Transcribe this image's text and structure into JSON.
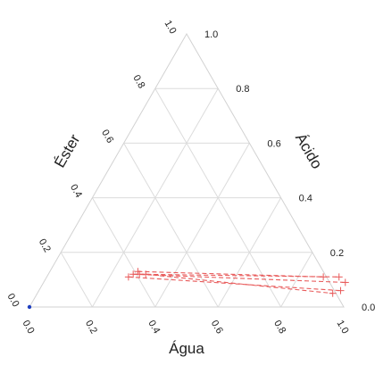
{
  "chart_data": {
    "type": "ternary",
    "axis_labels": {
      "bottom": "Água",
      "right": "Ácido",
      "left": "Éster"
    },
    "bottom_ticks": [
      "0.0",
      "0.2",
      "0.4",
      "0.6",
      "0.8",
      "1.0"
    ],
    "right_ticks": [
      "0.0",
      "0.2",
      "0.4",
      "0.6",
      "0.8",
      "1.0"
    ],
    "left_ticks": [
      "0.0",
      "0.2",
      "0.4",
      "0.6",
      "0.8",
      "1.0"
    ],
    "grid_step": 0.2,
    "colors": {
      "tie_line": "#e85a5a",
      "grid": "#dcdcdc",
      "frame": "#d2d2d2",
      "corner_point": "#1f3fbf"
    },
    "tie_lines": [
      {
        "organic": {
          "agua": 0.26,
          "acido": 0.11
        },
        "aqueous": {
          "agua": 0.96,
          "acido": 0.06
        }
      },
      {
        "organic": {
          "agua": 0.27,
          "acido": 0.12
        },
        "aqueous": {
          "agua": 0.96,
          "acido": 0.09
        }
      },
      {
        "organic": {
          "agua": 0.29,
          "acido": 0.12
        },
        "aqueous": {
          "agua": 0.93,
          "acido": 0.11
        }
      },
      {
        "organic": {
          "agua": 0.28,
          "acido": 0.13
        },
        "aqueous": {
          "agua": 0.88,
          "acido": 0.11
        }
      },
      {
        "organic": {
          "agua": 0.31,
          "acido": 0.12
        },
        "aqueous": {
          "agua": 0.94,
          "acido": 0.05
        }
      }
    ],
    "corner_point": {
      "agua": 0.0,
      "acido": 0.0
    }
  }
}
